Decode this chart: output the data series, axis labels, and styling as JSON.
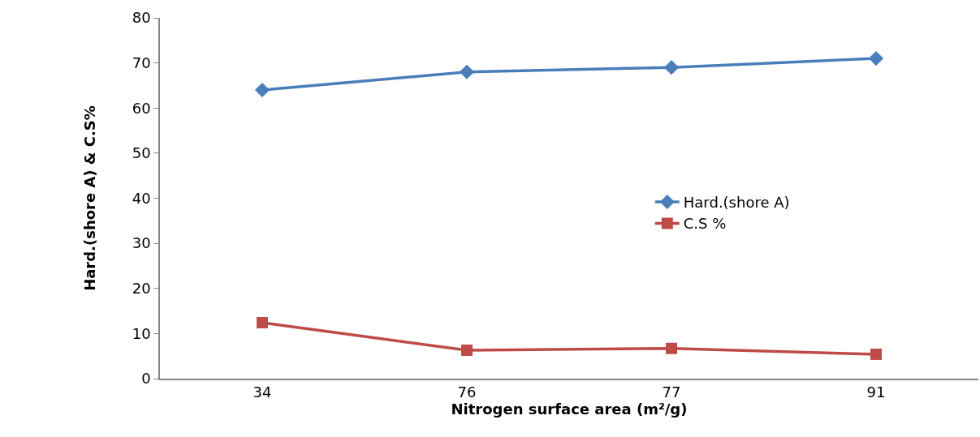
{
  "chart_data": {
    "type": "line",
    "xlabel": "Nitrogen surface area (m²/g)",
    "ylabel": "Hard.(shore A) & C.S%",
    "categories": [
      "34",
      "76",
      "77",
      "91"
    ],
    "series": [
      {
        "name": "Hard.(shore A)",
        "color": "#4a7ebb",
        "marker": "diamond",
        "values": [
          64,
          68,
          69,
          71
        ]
      },
      {
        "name": "C.S %",
        "color": "#be4b48",
        "marker": "square",
        "values": [
          12.4,
          6.3,
          6.7,
          5.4
        ]
      }
    ],
    "ylim": [
      0,
      80
    ],
    "yticks": [
      0,
      10,
      20,
      30,
      40,
      50,
      60,
      70,
      80
    ],
    "grid": false,
    "legend": "right",
    "line_style": "solid"
  }
}
